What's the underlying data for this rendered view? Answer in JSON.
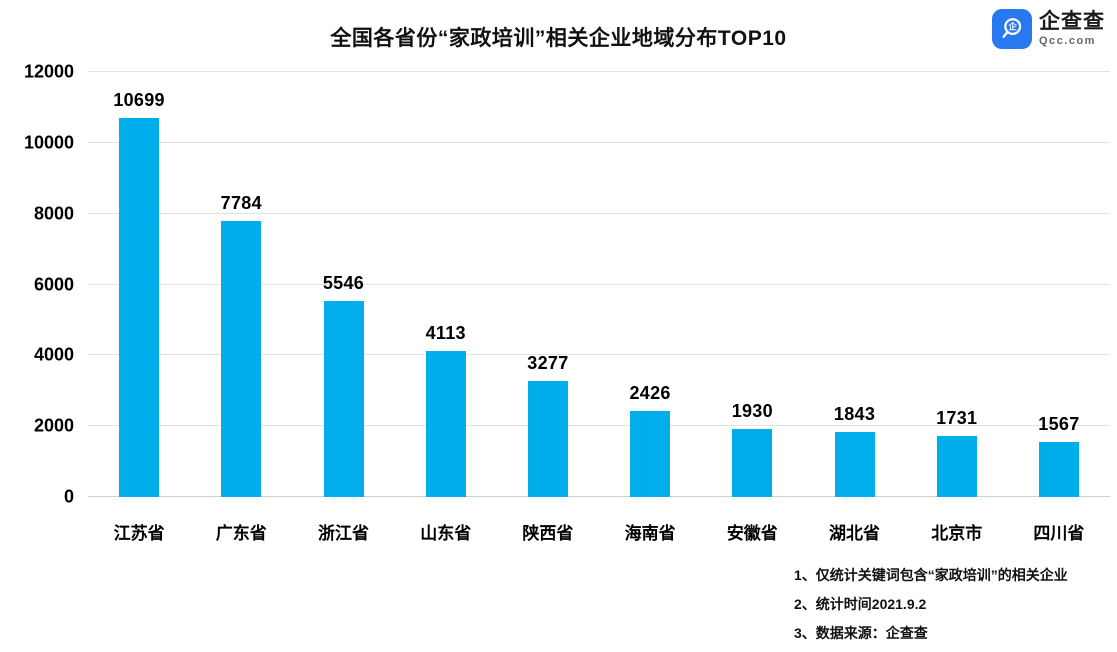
{
  "logo": {
    "name": "企查查",
    "domain": "Qcc.com",
    "brand_color": "#2878F0"
  },
  "chart_data": {
    "type": "bar",
    "title": "全国各省份“家政培训”相关企业地域分布TOP10",
    "categories": [
      "江苏省",
      "广东省",
      "浙江省",
      "山东省",
      "陕西省",
      "海南省",
      "安徽省",
      "湖北省",
      "北京市",
      "四川省"
    ],
    "values": [
      10699,
      7784,
      5546,
      4113,
      3277,
      2426,
      1930,
      1843,
      1731,
      1567
    ],
    "xlabel": "",
    "ylabel": "",
    "ylim": [
      0,
      12000
    ],
    "yticks": [
      0,
      2000,
      4000,
      6000,
      8000,
      10000,
      12000
    ],
    "grid": true,
    "legend": false,
    "bar_color": "#00AEEC",
    "value_labels": true
  },
  "footnotes": [
    "1、仅统计关键词包含“家政培训”的相关企业",
    "2、统计时间2021.9.2",
    "3、数据来源：企查查"
  ]
}
